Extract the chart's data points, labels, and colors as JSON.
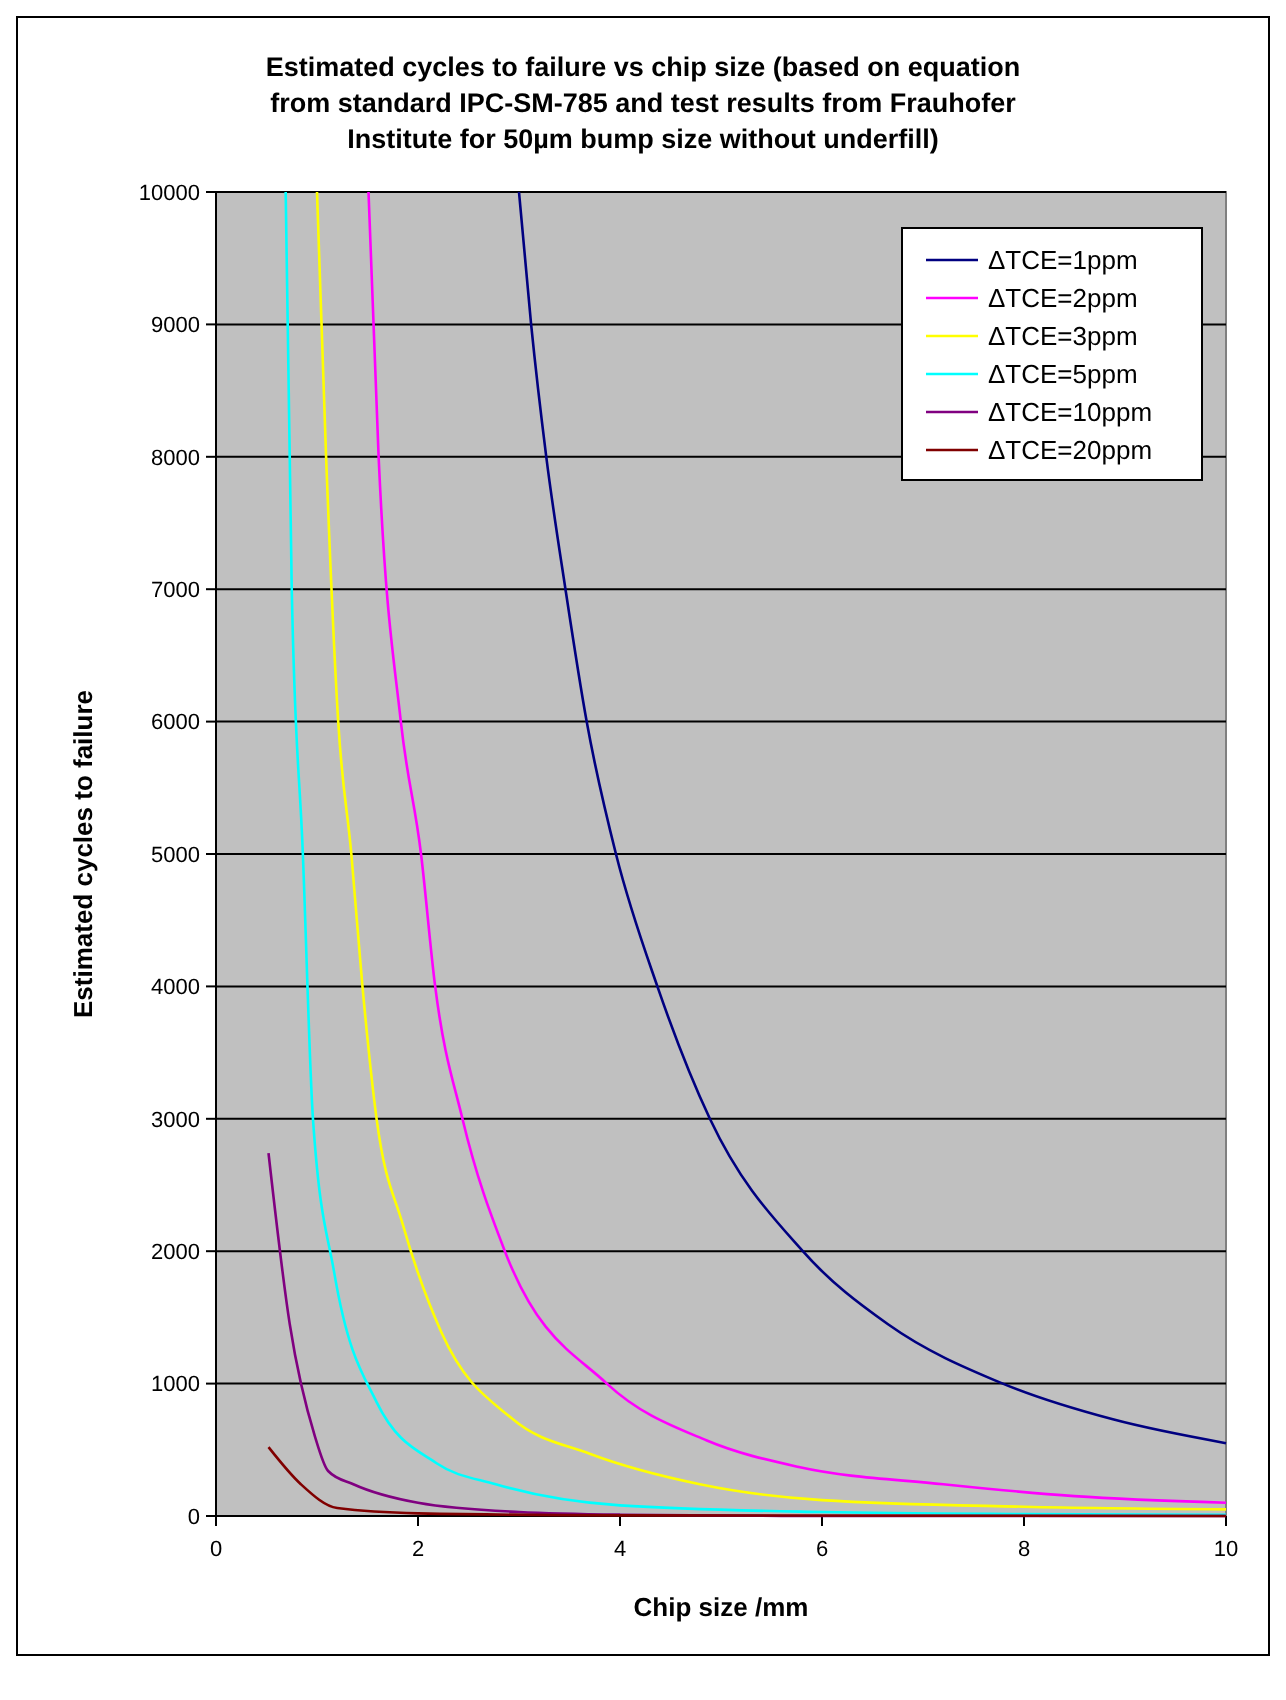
{
  "chart_data": {
    "type": "line",
    "title": "Estimated cycles to failure vs chip size (based on equation from standard IPC-SM-785 and test results from Frauhofer Institute for 50µm bump size without underfill)",
    "xlabel": "Chip size /mm",
    "ylabel": "Estimated cycles to failure",
    "xlim": [
      0,
      10
    ],
    "ylim": [
      0,
      10000
    ],
    "xticks": [
      0,
      2,
      4,
      6,
      8,
      10
    ],
    "yticks": [
      0,
      1000,
      2000,
      3000,
      4000,
      5000,
      6000,
      7000,
      8000,
      9000,
      10000
    ],
    "grid": "y",
    "legend": "top right",
    "marker": "none",
    "line_style": "solid",
    "series": [
      {
        "name": "ΔTCE=1ppm",
        "color": "#000080",
        "x": [
          3.0,
          3.12,
          3.27,
          3.46,
          3.67,
          3.96,
          4.37,
          4.89,
          5.81,
          6.65,
          7.79,
          8.88,
          10
        ],
        "values": [
          10000,
          9000,
          8000,
          7000,
          6000,
          5000,
          4000,
          3000,
          2000,
          1450,
          1000,
          730,
          550
        ]
      },
      {
        "name": "ΔTCE=2ppm",
        "color": "#ff00ff",
        "x": [
          1.51,
          1.61,
          1.83,
          2.03,
          2.17,
          2.44,
          2.86,
          3.87,
          4.86,
          5.77,
          7.2,
          8.5,
          10
        ],
        "values": [
          10000,
          8000,
          6000,
          5000,
          4000,
          3000,
          2000,
          1000,
          570,
          370,
          240,
          150,
          100
        ]
      },
      {
        "name": "ΔTCE=3ppm",
        "color": "#ffff00",
        "x": [
          1.0,
          1.09,
          1.21,
          1.34,
          1.45,
          1.59,
          1.85,
          2.23,
          2.94,
          3.7,
          4.79,
          6,
          8,
          10
        ],
        "values": [
          10000,
          8000,
          6000,
          5000,
          4000,
          3000,
          2200,
          1390,
          730,
          470,
          240,
          120,
          70,
          50
        ]
      },
      {
        "name": "ΔTCE=5ppm",
        "color": "#00ffff",
        "x": [
          0.69,
          0.75,
          0.86,
          0.96,
          1.17,
          1.59,
          2.18,
          2.77,
          4,
          6,
          8,
          10
        ],
        "values": [
          10000,
          7000,
          5000,
          3000,
          1840,
          860,
          400,
          240,
          80,
          30,
          15,
          10
        ]
      },
      {
        "name": "ΔTCE=10ppm",
        "color": "#800080",
        "x": [
          0.52,
          0.73,
          0.98,
          1.11,
          1.36,
          2,
          3,
          4,
          6,
          10
        ],
        "values": [
          2740,
          1450,
          600,
          340,
          240,
          100,
          30,
          10,
          0,
          0
        ]
      },
      {
        "name": "ΔTCE=20ppm",
        "color": "#800000",
        "x": [
          0.52,
          0.84,
          1.2,
          2,
          4,
          10
        ],
        "values": [
          520,
          240,
          60,
          20,
          5,
          0
        ]
      }
    ]
  }
}
